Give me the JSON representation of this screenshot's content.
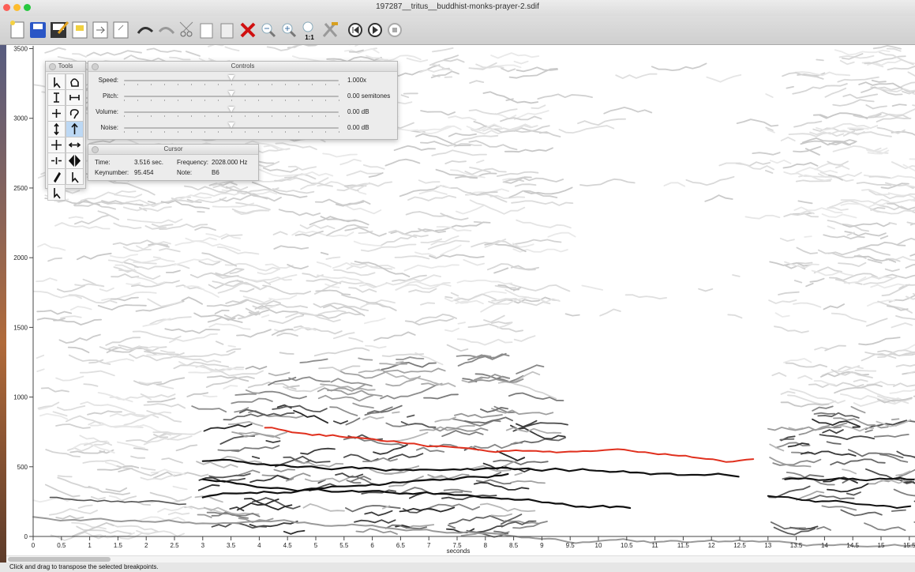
{
  "window": {
    "title": "197287__tritus__buddhist-monks-prayer-2.sdif"
  },
  "toolbar": {
    "zoom_actual_label": "1:1"
  },
  "spectrum": {
    "xlim": [
      0,
      15.6
    ],
    "ylim": [
      0,
      3520
    ],
    "xticks": [
      0,
      0.5,
      1,
      1.5,
      2,
      2.5,
      3,
      3.5,
      4,
      4.5,
      5,
      5.5,
      6,
      6.5,
      7,
      7.5,
      8,
      8.5,
      9,
      9.5,
      10,
      10.5,
      11,
      11.5,
      12,
      12.5,
      13,
      13.5,
      14,
      14.5,
      15,
      15.5
    ],
    "yticks": [
      0,
      500,
      1000,
      1500,
      2000,
      2500,
      3000,
      3500
    ],
    "xlabel": "seconds"
  },
  "tools": {
    "title": "Tools"
  },
  "controls": {
    "title": "Controls",
    "rows": [
      {
        "label": "Speed:",
        "value": "1.000x"
      },
      {
        "label": "Pitch:",
        "value": "0.00 semitones"
      },
      {
        "label": "Volume:",
        "value": "0.00 dB"
      },
      {
        "label": "Noise:",
        "value": "0.00 dB"
      }
    ]
  },
  "cursor": {
    "title": "Cursor",
    "time_label": "Time:",
    "time": "3.516 sec.",
    "frequency_label": "Frequency:",
    "frequency": "2028.000 Hz",
    "keynumber_label": "Keynumber:",
    "keynumber": "95.454",
    "note_label": "Note:",
    "note": "B6"
  },
  "status": "Click and drag to transpose the selected breakpoints."
}
